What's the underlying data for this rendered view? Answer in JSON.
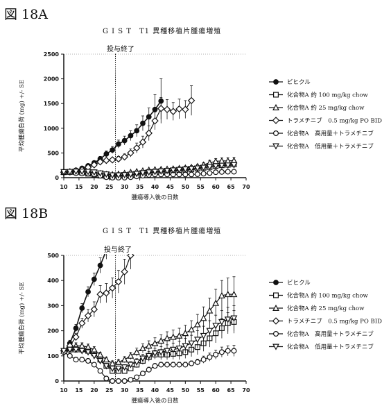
{
  "figures": [
    {
      "label": "図 18A",
      "title": "G I S T　T1 異種移植片腫瘍増殖"
    },
    {
      "label": "図 18B",
      "title": "G I S T　T1 異種移植片腫瘍増殖"
    }
  ],
  "chart_data": [
    {
      "type": "line",
      "title": "G I S T　T1 異種移植片腫瘍増殖",
      "xlabel": "腫瘍導入後の日数",
      "ylabel": "平均腫瘍負荷 (mg) +/- SE",
      "xlim": [
        10,
        70
      ],
      "ylim": [
        0,
        2500
      ],
      "xticks": [
        10,
        15,
        20,
        25,
        30,
        35,
        40,
        45,
        50,
        55,
        60,
        65,
        70
      ],
      "yticks": [
        0,
        500,
        1000,
        1500,
        2000,
        2500
      ],
      "annotation": {
        "text": "投与終了",
        "x": 27
      },
      "grid": false,
      "legend_position": "right",
      "series": [
        {
          "name": "ビヒクル",
          "marker": "filled-circle",
          "x": [
            10,
            12,
            14,
            16,
            18,
            20,
            22,
            24,
            26,
            28,
            30,
            32,
            34,
            36,
            38,
            40,
            42
          ],
          "y": [
            110,
            120,
            150,
            190,
            240,
            300,
            380,
            480,
            560,
            680,
            750,
            850,
            950,
            1100,
            1230,
            1380,
            1550
          ],
          "err": [
            15,
            20,
            25,
            30,
            35,
            40,
            50,
            60,
            70,
            80,
            90,
            100,
            120,
            150,
            180,
            300,
            450
          ]
        },
        {
          "name": "化合物A 約 100 mg/kg chow",
          "marker": "open-square",
          "x": [
            10,
            12,
            14,
            16,
            18,
            20,
            22,
            24,
            26,
            28,
            30,
            32,
            34,
            36,
            38,
            40,
            42,
            44,
            46,
            48,
            50,
            52,
            54,
            56,
            58,
            60,
            62,
            64,
            66
          ],
          "y": [
            110,
            115,
            110,
            100,
            80,
            60,
            40,
            25,
            20,
            25,
            35,
            45,
            60,
            80,
            100,
            110,
            120,
            130,
            140,
            150,
            160,
            170,
            185,
            200,
            215,
            235,
            250,
            260,
            270
          ],
          "err": [
            10,
            10,
            10,
            10,
            10,
            10,
            8,
            8,
            8,
            8,
            10,
            10,
            12,
            15,
            15,
            18,
            20,
            20,
            22,
            25,
            25,
            28,
            30,
            32,
            35,
            38,
            40,
            42,
            45
          ]
        },
        {
          "name": "化合物A 約 25 mg/kg chow",
          "marker": "open-triangle",
          "x": [
            10,
            12,
            14,
            16,
            18,
            20,
            22,
            24,
            26,
            28,
            30,
            32,
            34,
            36,
            38,
            40,
            42,
            44,
            46,
            48,
            50,
            52,
            54,
            56,
            58,
            60,
            62,
            64,
            66
          ],
          "y": [
            115,
            120,
            125,
            120,
            115,
            100,
            85,
            70,
            65,
            75,
            90,
            110,
            125,
            140,
            155,
            165,
            170,
            175,
            180,
            190,
            200,
            210,
            230,
            260,
            300,
            330,
            340,
            340,
            345
          ],
          "err": [
            10,
            10,
            12,
            12,
            12,
            12,
            10,
            10,
            10,
            10,
            12,
            14,
            16,
            18,
            20,
            22,
            24,
            26,
            28,
            30,
            32,
            35,
            40,
            45,
            50,
            55,
            60,
            65,
            70
          ]
        },
        {
          "name": "トラメチニブ　0.5 mg/kg PO BID",
          "marker": "open-diamond",
          "x": [
            10,
            12,
            14,
            16,
            18,
            20,
            22,
            24,
            26,
            28,
            30,
            32,
            34,
            36,
            38,
            40,
            42,
            44,
            46,
            48,
            50,
            52
          ],
          "y": [
            110,
            120,
            140,
            160,
            210,
            260,
            320,
            350,
            360,
            380,
            420,
            500,
            600,
            720,
            900,
            1150,
            1400,
            1380,
            1340,
            1390,
            1380,
            1560
          ],
          "err": [
            12,
            15,
            18,
            22,
            28,
            32,
            38,
            42,
            45,
            50,
            60,
            80,
            100,
            120,
            150,
            180,
            220,
            200,
            180,
            200,
            180,
            300
          ]
        },
        {
          "name": "化合物A　高用量＋トラメチニブ",
          "marker": "open-circle",
          "x": [
            10,
            12,
            14,
            16,
            18,
            20,
            22,
            24,
            26,
            28,
            30,
            32,
            34,
            36,
            38,
            40,
            42,
            44,
            46,
            48,
            50,
            52,
            54,
            56,
            58,
            60,
            62,
            64,
            66
          ],
          "y": [
            110,
            105,
            90,
            85,
            80,
            65,
            40,
            10,
            0,
            0,
            0,
            10,
            25,
            40,
            55,
            65,
            65,
            65,
            65,
            65,
            65,
            65,
            70,
            80,
            95,
            110,
            115,
            120,
            120
          ],
          "err": [
            10,
            10,
            10,
            10,
            10,
            8,
            6,
            4,
            2,
            2,
            2,
            4,
            6,
            8,
            10,
            10,
            10,
            10,
            10,
            10,
            10,
            10,
            12,
            14,
            16,
            18,
            20,
            20,
            22
          ]
        },
        {
          "name": "化合物A　低用量＋トラメチニブ",
          "marker": "open-inverted-triangle",
          "x": [
            10,
            12,
            14,
            16,
            18,
            20,
            22,
            24,
            26,
            28,
            30,
            32,
            34,
            36,
            38,
            40,
            42,
            44,
            46,
            48,
            50,
            52,
            54,
            56,
            58,
            60,
            62,
            64,
            66
          ],
          "y": [
            115,
            120,
            125,
            125,
            120,
            110,
            90,
            70,
            50,
            50,
            55,
            65,
            80,
            95,
            110,
            120,
            130,
            140,
            150,
            160,
            170,
            180,
            190,
            205,
            220,
            235,
            245,
            250,
            255
          ],
          "err": [
            10,
            10,
            12,
            12,
            12,
            12,
            10,
            10,
            8,
            8,
            10,
            12,
            14,
            16,
            18,
            20,
            22,
            24,
            26,
            28,
            30,
            32,
            35,
            38,
            40,
            42,
            45,
            48,
            50
          ]
        }
      ]
    },
    {
      "type": "line",
      "title": "G I S T　T1 異種移植片腫瘍増殖",
      "xlabel": "腫瘍導入後の日数",
      "ylabel": "平均腫瘍負荷 (mg) +/- SE",
      "xlim": [
        10,
        70
      ],
      "ylim": [
        0,
        500
      ],
      "xticks": [
        10,
        15,
        20,
        25,
        30,
        35,
        40,
        45,
        50,
        55,
        60,
        65,
        70
      ],
      "yticks": [
        0,
        100,
        200,
        300,
        400,
        500
      ],
      "annotation": {
        "text": "投与終了",
        "x": 27
      },
      "grid": false,
      "legend_position": "right",
      "series": [
        {
          "name": "ビヒクル",
          "marker": "filled-circle",
          "x": [
            10,
            12,
            14,
            16,
            18,
            20,
            22,
            24,
            26
          ],
          "y": [
            115,
            150,
            210,
            290,
            355,
            405,
            460,
            520,
            600
          ],
          "err": [
            10,
            12,
            15,
            18,
            20,
            25,
            30,
            35,
            40
          ]
        },
        {
          "name": "化合物A 約 100 mg/kg chow",
          "marker": "open-square",
          "x": [
            10,
            12,
            14,
            16,
            18,
            20,
            22,
            24,
            26,
            28,
            30,
            32,
            34,
            36,
            38,
            40,
            42,
            44,
            46,
            48,
            50,
            52,
            54,
            56,
            58,
            60,
            62,
            64,
            66
          ],
          "y": [
            120,
            125,
            125,
            125,
            120,
            110,
            85,
            60,
            40,
            40,
            40,
            50,
            65,
            80,
            95,
            105,
            105,
            105,
            108,
            110,
            115,
            125,
            135,
            150,
            170,
            190,
            210,
            230,
            235
          ],
          "err": [
            10,
            10,
            12,
            12,
            12,
            12,
            10,
            10,
            8,
            8,
            8,
            10,
            12,
            14,
            16,
            18,
            20,
            20,
            22,
            25,
            25,
            28,
            30,
            32,
            35,
            38,
            40,
            42,
            45
          ]
        },
        {
          "name": "化合物A 約 25 mg/kg chow",
          "marker": "open-triangle",
          "x": [
            10,
            12,
            14,
            16,
            18,
            20,
            22,
            24,
            26,
            28,
            30,
            32,
            34,
            36,
            38,
            40,
            42,
            44,
            46,
            48,
            50,
            52,
            54,
            56,
            58,
            60,
            62,
            64,
            66
          ],
          "y": [
            120,
            130,
            140,
            140,
            135,
            125,
            105,
            85,
            70,
            75,
            85,
            100,
            115,
            130,
            140,
            150,
            160,
            170,
            175,
            180,
            190,
            205,
            225,
            250,
            280,
            310,
            340,
            345,
            345
          ],
          "err": [
            10,
            10,
            12,
            12,
            12,
            12,
            10,
            10,
            10,
            10,
            12,
            14,
            16,
            18,
            20,
            22,
            24,
            26,
            28,
            30,
            32,
            35,
            40,
            45,
            50,
            55,
            60,
            65,
            70
          ]
        },
        {
          "name": "トラメチニブ　0.5 mg/kg PO BID",
          "marker": "open-diamond",
          "x": [
            10,
            12,
            14,
            16,
            18,
            20,
            22,
            24,
            26,
            28,
            30,
            32
          ],
          "y": [
            120,
            140,
            175,
            230,
            260,
            285,
            345,
            350,
            370,
            395,
            435,
            500
          ],
          "err": [
            10,
            12,
            15,
            20,
            25,
            30,
            35,
            38,
            40,
            45,
            50,
            55
          ]
        },
        {
          "name": "化合物A　高用量＋トラメチニブ",
          "marker": "open-circle",
          "x": [
            10,
            12,
            14,
            16,
            18,
            20,
            22,
            24,
            26,
            28,
            30,
            32,
            34,
            36,
            38,
            40,
            42,
            44,
            46,
            48,
            50,
            52,
            54,
            56,
            58,
            60,
            62,
            64,
            66
          ],
          "y": [
            115,
            100,
            85,
            85,
            80,
            65,
            40,
            10,
            0,
            0,
            0,
            5,
            15,
            30,
            45,
            60,
            65,
            65,
            65,
            65,
            65,
            70,
            75,
            85,
            95,
            105,
            115,
            120,
            120
          ],
          "err": [
            10,
            10,
            10,
            10,
            10,
            8,
            6,
            4,
            2,
            2,
            2,
            4,
            6,
            8,
            10,
            10,
            10,
            10,
            10,
            10,
            10,
            10,
            12,
            14,
            16,
            18,
            20,
            20,
            22
          ]
        },
        {
          "name": "化合物A　低用量＋トラメチニブ",
          "marker": "open-inverted-triangle",
          "x": [
            10,
            12,
            14,
            16,
            18,
            20,
            22,
            24,
            26,
            28,
            30,
            32,
            34,
            36,
            38,
            40,
            42,
            44,
            46,
            48,
            50,
            52,
            54,
            56,
            58,
            60,
            62,
            64,
            66
          ],
          "y": [
            120,
            125,
            125,
            120,
            115,
            100,
            80,
            60,
            50,
            50,
            55,
            65,
            75,
            90,
            100,
            110,
            115,
            120,
            125,
            130,
            140,
            150,
            165,
            180,
            200,
            220,
            235,
            245,
            250
          ],
          "err": [
            10,
            10,
            12,
            12,
            12,
            12,
            10,
            10,
            8,
            8,
            10,
            12,
            14,
            16,
            18,
            20,
            22,
            24,
            26,
            28,
            30,
            32,
            35,
            38,
            40,
            42,
            45,
            48,
            50
          ]
        }
      ]
    }
  ]
}
